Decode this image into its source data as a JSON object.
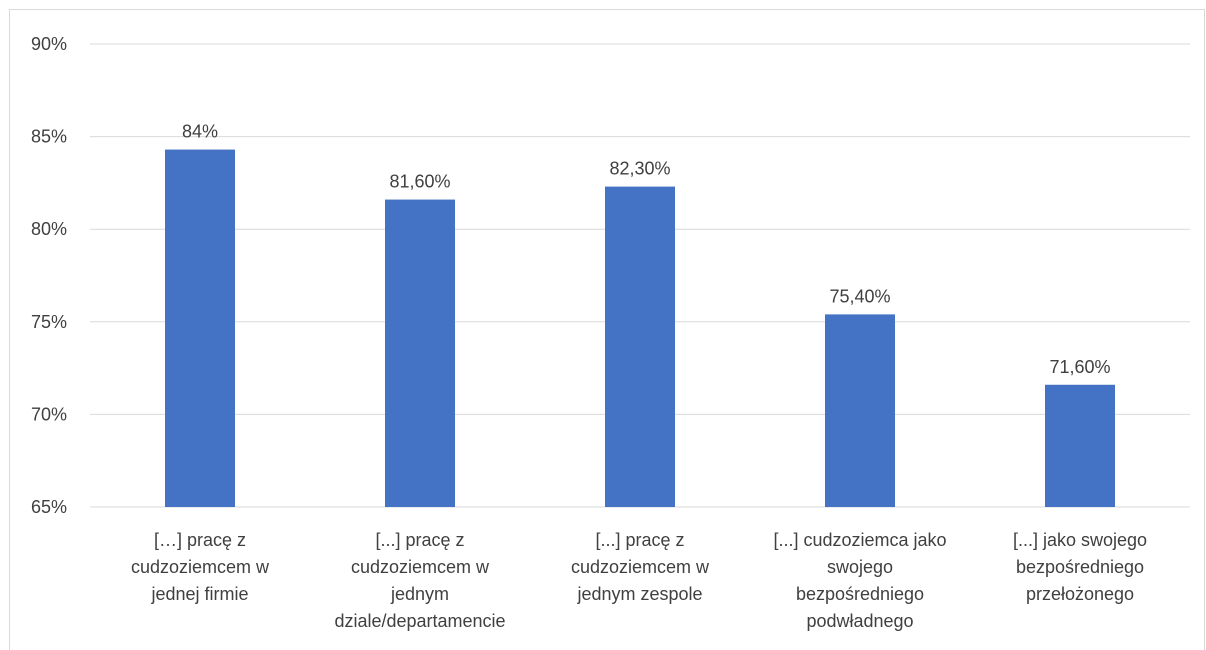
{
  "chart_data": {
    "type": "bar",
    "title": "",
    "xlabel": "",
    "ylabel": "",
    "ylim": [
      65,
      90
    ],
    "yticks": [
      65,
      70,
      75,
      80,
      85,
      90
    ],
    "ytick_labels": [
      "65%",
      "70%",
      "75%",
      "80%",
      "85%",
      "90%"
    ],
    "grid": true,
    "legend": "none",
    "bar_color": "#4472C4",
    "grid_color": "#d9d9d9",
    "categories": [
      [
        "[…] pracę z",
        "cudzoziemcem w",
        "jednej firmie"
      ],
      [
        "[...] pracę z",
        "cudzoziemcem w",
        "jednym",
        "dziale/departamencie"
      ],
      [
        "[...] pracę z",
        "cudzoziemcem w",
        "jednym zespole"
      ],
      [
        "[...] cudzoziemca jako",
        "swojego",
        "bezpośredniego",
        "podwładnego"
      ],
      [
        "[...] jako swojego",
        "bezpośredniego",
        "przełożonego"
      ]
    ],
    "values": [
      84.3,
      81.6,
      82.3,
      75.4,
      71.6
    ],
    "data_labels": [
      "84%",
      "81,60%",
      "82,30%",
      "75,40%",
      "71,60%"
    ]
  }
}
